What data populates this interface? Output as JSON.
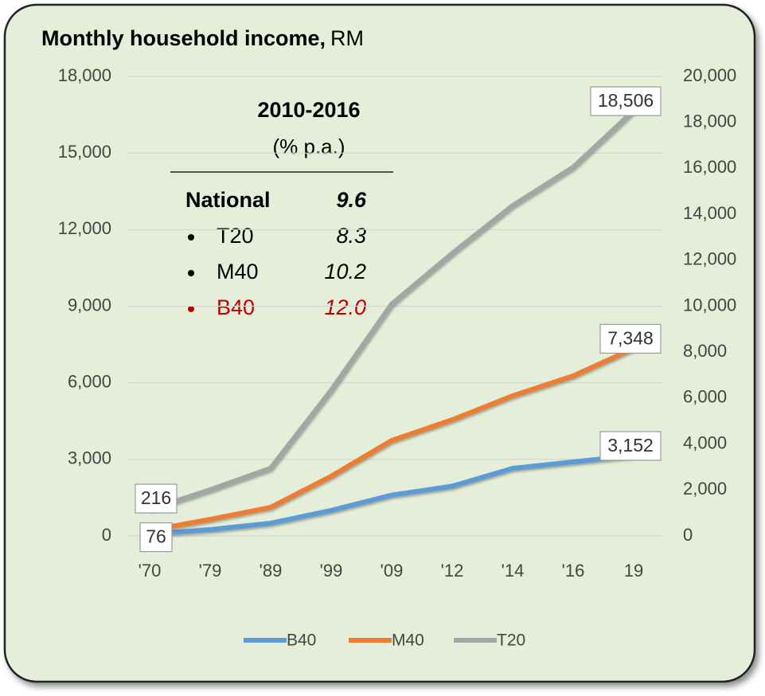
{
  "chart_data": {
    "type": "line",
    "title": "Monthly household income,",
    "title_unit": "RM",
    "categories": [
      "'70",
      "'79",
      "'89",
      "'99",
      "'09",
      "'12",
      "'14",
      "'16",
      "19"
    ],
    "series": [
      {
        "name": "B40",
        "color": "#5b9bd5",
        "values": [
          76,
          250,
          500,
          1000,
          1600,
          1950,
          2650,
          2900,
          3152
        ],
        "value_labels": [
          "76",
          null,
          null,
          null,
          null,
          null,
          null,
          null,
          "3,152"
        ]
      },
      {
        "name": "M40",
        "color": "#ed7d31",
        "values": [
          216,
          650,
          1120,
          2340,
          3740,
          4550,
          5490,
          6270,
          7348
        ],
        "value_labels": [
          "216",
          null,
          null,
          null,
          null,
          null,
          null,
          null,
          "7,348"
        ]
      },
      {
        "name": "T20",
        "color": "#a5a5a5",
        "axis": "y2",
        "values": [
          1144,
          2010,
          2950,
          6340,
          10090,
          12300,
          14380,
          16050,
          18506
        ],
        "value_labels": [
          null,
          null,
          null,
          null,
          null,
          null,
          null,
          null,
          "18,506"
        ]
      }
    ],
    "ylim": [
      0,
      18000
    ],
    "yticks": [
      0,
      {
        "value": 3000,
        "label": "3,000"
      },
      {
        "value": 6000,
        "label": "6,000"
      },
      {
        "value": 9000,
        "label": "9,000"
      },
      {
        "value": 12000,
        "label": "12,000"
      },
      {
        "value": 15000,
        "label": "15,000"
      },
      {
        "value": 18000,
        "label": "18,000"
      }
    ],
    "y2lim": [
      0,
      20000
    ],
    "y2ticks": [
      0,
      {
        "value": 2000,
        "label": "2,000"
      },
      {
        "value": 4000,
        "label": "4,000"
      },
      {
        "value": 6000,
        "label": "6,000"
      },
      {
        "value": 8000,
        "label": "8,000"
      },
      {
        "value": 10000,
        "label": "10,000"
      },
      {
        "value": 12000,
        "label": "12,000"
      },
      {
        "value": 14000,
        "label": "14,000"
      },
      {
        "value": 16000,
        "label": "16,000"
      },
      {
        "value": 18000,
        "label": "18,000"
      },
      {
        "value": 20000,
        "label": "20,000"
      }
    ],
    "grid": true,
    "legend": "bottom",
    "inset": {
      "title": "2010-2016",
      "subtitle": "(% p.a.)",
      "rows": [
        {
          "name": "National",
          "value": "9.6",
          "color": "#000000",
          "bold": true
        },
        {
          "name": "T20",
          "value": "8.3",
          "color": "#000000",
          "bullet": true
        },
        {
          "name": "M40",
          "value": "10.2",
          "color": "#000000",
          "bullet": true
        },
        {
          "name": "B40",
          "value": "12.0",
          "color": "#c00000",
          "bullet": true
        }
      ]
    }
  }
}
